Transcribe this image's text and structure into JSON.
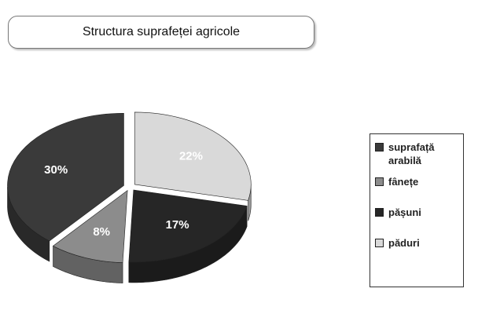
{
  "chart_data": {
    "type": "pie3d",
    "title": "Structura suprafeței agricole",
    "categories": [
      "suprafață arabilă",
      "fânețe",
      "pășuni",
      "păduri"
    ],
    "values": [
      30,
      8,
      17,
      22
    ],
    "value_labels": [
      "30%",
      "8%",
      "17%",
      "22%"
    ],
    "colors": [
      "#3a3a3a",
      "#8c8c8c",
      "#262626",
      "#d9d9d9"
    ]
  }
}
